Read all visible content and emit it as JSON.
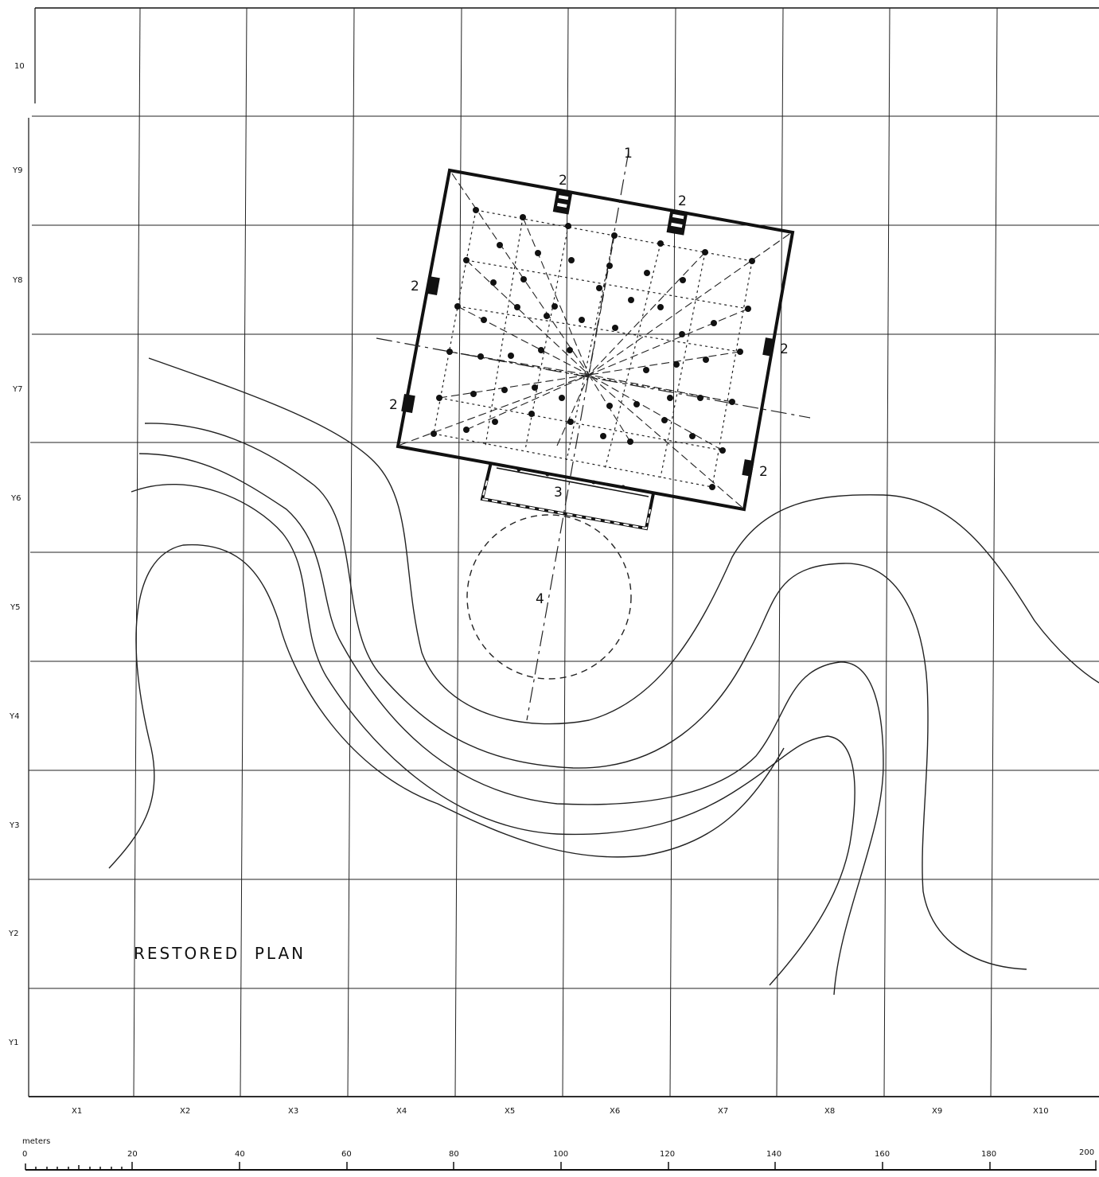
{
  "plan_title": "RESTORED  PLAN",
  "grid": {
    "x_labels": [
      "X1",
      "X2",
      "X3",
      "X4",
      "X5",
      "X6",
      "X7",
      "X8",
      "X9",
      "X10"
    ],
    "y_labels": [
      "10",
      "Y9",
      "Y8",
      "Y7",
      "Y6",
      "Y5",
      "Y4",
      "Y3",
      "Y2",
      "Y1"
    ]
  },
  "scale_bar": {
    "unit_label": "meters",
    "ticks": [
      "0",
      "20",
      "40",
      "60",
      "80",
      "100",
      "120",
      "140",
      "160",
      "180",
      "200"
    ]
  },
  "markers": {
    "one": "1",
    "two": "2",
    "three": "3",
    "four": "4"
  },
  "colors": {
    "ink": "#111111",
    "paper": "#ffffff"
  }
}
